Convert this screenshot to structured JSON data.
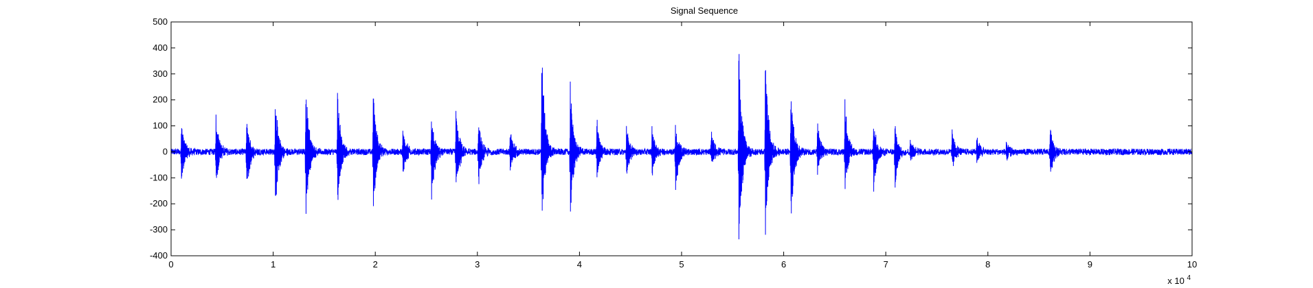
{
  "chart_data": {
    "type": "line",
    "title": "Signal Sequence",
    "xlabel": "",
    "ylabel": "",
    "xlim": [
      0,
      100000
    ],
    "ylim": [
      -400,
      500
    ],
    "x_exponent_label": "x 10",
    "x_exponent_power": "4",
    "x_ticks": [
      0,
      10000,
      20000,
      30000,
      40000,
      50000,
      60000,
      70000,
      80000,
      90000,
      100000
    ],
    "x_tick_labels": [
      "0",
      "1",
      "2",
      "3",
      "4",
      "5",
      "6",
      "7",
      "8",
      "9",
      "10"
    ],
    "y_ticks": [
      -400,
      -300,
      -200,
      -100,
      0,
      100,
      200,
      300,
      400,
      500
    ],
    "y_tick_labels": [
      "-400",
      "-300",
      "-200",
      "-100",
      "0",
      "100",
      "200",
      "300",
      "400",
      "500"
    ],
    "grid": false,
    "line_color": "#0000ff",
    "noise_amplitude": 12,
    "bursts": [
      {
        "x": 1000,
        "max": 120,
        "min": -140
      },
      {
        "x": 4400,
        "max": 155,
        "min": -150
      },
      {
        "x": 7400,
        "max": 120,
        "min": -180
      },
      {
        "x": 10200,
        "max": 220,
        "min": -250
      },
      {
        "x": 13200,
        "max": 275,
        "min": -270
      },
      {
        "x": 16300,
        "max": 245,
        "min": -240
      },
      {
        "x": 19800,
        "max": 275,
        "min": -245
      },
      {
        "x": 22700,
        "max": 105,
        "min": -105
      },
      {
        "x": 25500,
        "max": 150,
        "min": -200
      },
      {
        "x": 27900,
        "max": 180,
        "min": -200
      },
      {
        "x": 30100,
        "max": 120,
        "min": -140
      },
      {
        "x": 33200,
        "max": 95,
        "min": -80
      },
      {
        "x": 36300,
        "max": 405,
        "min": -295
      },
      {
        "x": 39100,
        "max": 270,
        "min": -260
      },
      {
        "x": 41700,
        "max": 130,
        "min": -110
      },
      {
        "x": 44600,
        "max": 110,
        "min": -100
      },
      {
        "x": 47100,
        "max": 110,
        "min": -95
      },
      {
        "x": 49400,
        "max": 110,
        "min": -185
      },
      {
        "x": 52900,
        "max": 85,
        "min": -60
      },
      {
        "x": 55600,
        "max": 445,
        "min": -395
      },
      {
        "x": 58200,
        "max": 395,
        "min": -340
      },
      {
        "x": 60700,
        "max": 275,
        "min": -280
      },
      {
        "x": 63300,
        "max": 115,
        "min": -90
      },
      {
        "x": 66000,
        "max": 205,
        "min": -160
      },
      {
        "x": 68800,
        "max": 120,
        "min": -170
      },
      {
        "x": 70900,
        "max": 110,
        "min": -150
      },
      {
        "x": 72400,
        "max": 60,
        "min": -40
      },
      {
        "x": 76500,
        "max": 80,
        "min": -70
      },
      {
        "x": 78900,
        "max": 65,
        "min": -50
      },
      {
        "x": 81800,
        "max": 35,
        "min": -30
      },
      {
        "x": 86100,
        "max": 100,
        "min": -105
      }
    ]
  }
}
